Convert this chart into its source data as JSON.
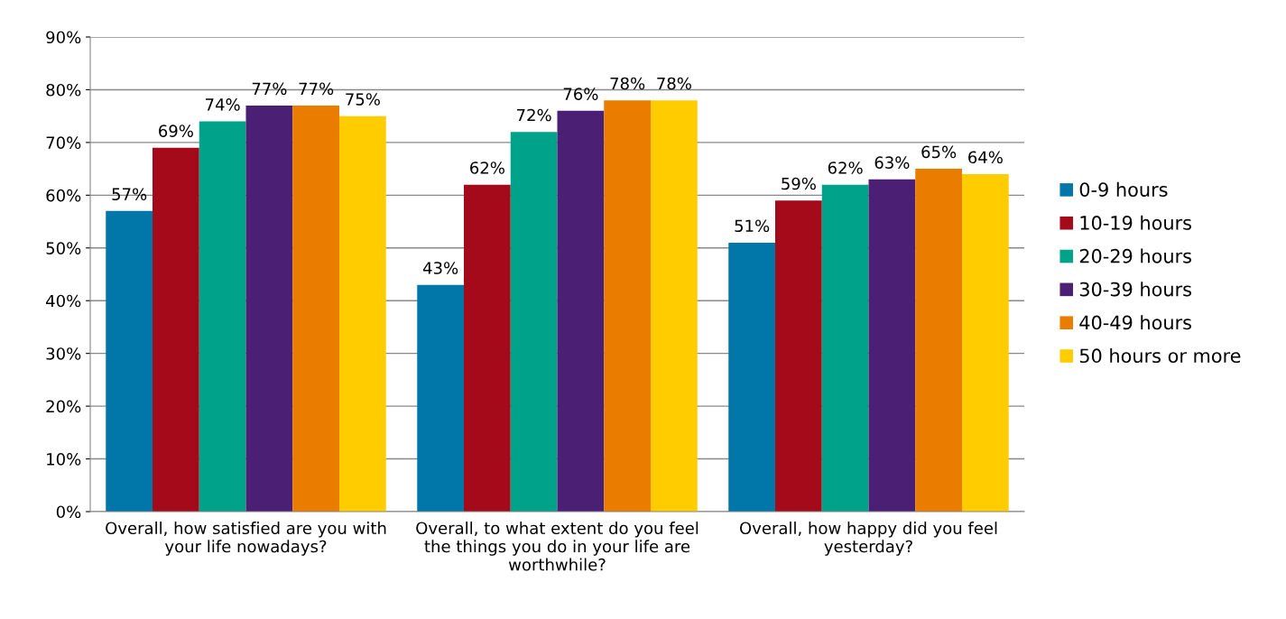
{
  "chart_data": {
    "type": "bar",
    "categories": [
      "Overall, how satisfied are you with\nyour life nowadays?",
      "Overall, to what extent do you feel\nthe things you do in your life are\nworthwhile?",
      "Overall, how happy did you feel\nyesterday?"
    ],
    "series": [
      {
        "name": "0-9 hours",
        "color": "#0077a8",
        "values": [
          57,
          43,
          51
        ],
        "value_labels": [
          "57%",
          "43%",
          "51%"
        ]
      },
      {
        "name": "10-19 hours",
        "color": "#a50a1a",
        "values": [
          69,
          62,
          59
        ],
        "value_labels": [
          "69%",
          "62%",
          "59%"
        ]
      },
      {
        "name": "20-29 hours",
        "color": "#00a38a",
        "values": [
          74,
          72,
          62
        ],
        "value_labels": [
          "74%",
          "72%",
          "62%"
        ]
      },
      {
        "name": "30-39 hours",
        "color": "#4b1f74",
        "values": [
          77,
          76,
          63
        ],
        "value_labels": [
          "77%",
          "76%",
          "63%"
        ]
      },
      {
        "name": "40-49 hours",
        "color": "#ea7d00",
        "values": [
          77,
          78,
          65
        ],
        "value_labels": [
          "77%",
          "78%",
          "65%"
        ]
      },
      {
        "name": "50 hours or more",
        "color": "#ffcc00",
        "values": [
          75,
          78,
          64
        ],
        "value_labels": [
          "75%",
          "78%",
          "64%"
        ]
      }
    ],
    "ylim": [
      0,
      90
    ],
    "yticks": [
      {
        "value": 0,
        "label": "0%"
      },
      {
        "value": 10,
        "label": "10%"
      },
      {
        "value": 20,
        "label": "20%"
      },
      {
        "value": 30,
        "label": "30%"
      },
      {
        "value": 40,
        "label": "40%"
      },
      {
        "value": 50,
        "label": "50%"
      },
      {
        "value": 60,
        "label": "60%"
      },
      {
        "value": 70,
        "label": "70%"
      },
      {
        "value": 80,
        "label": "80%"
      },
      {
        "value": 90,
        "label": "90%"
      }
    ],
    "grid": "y",
    "legend": "right"
  }
}
